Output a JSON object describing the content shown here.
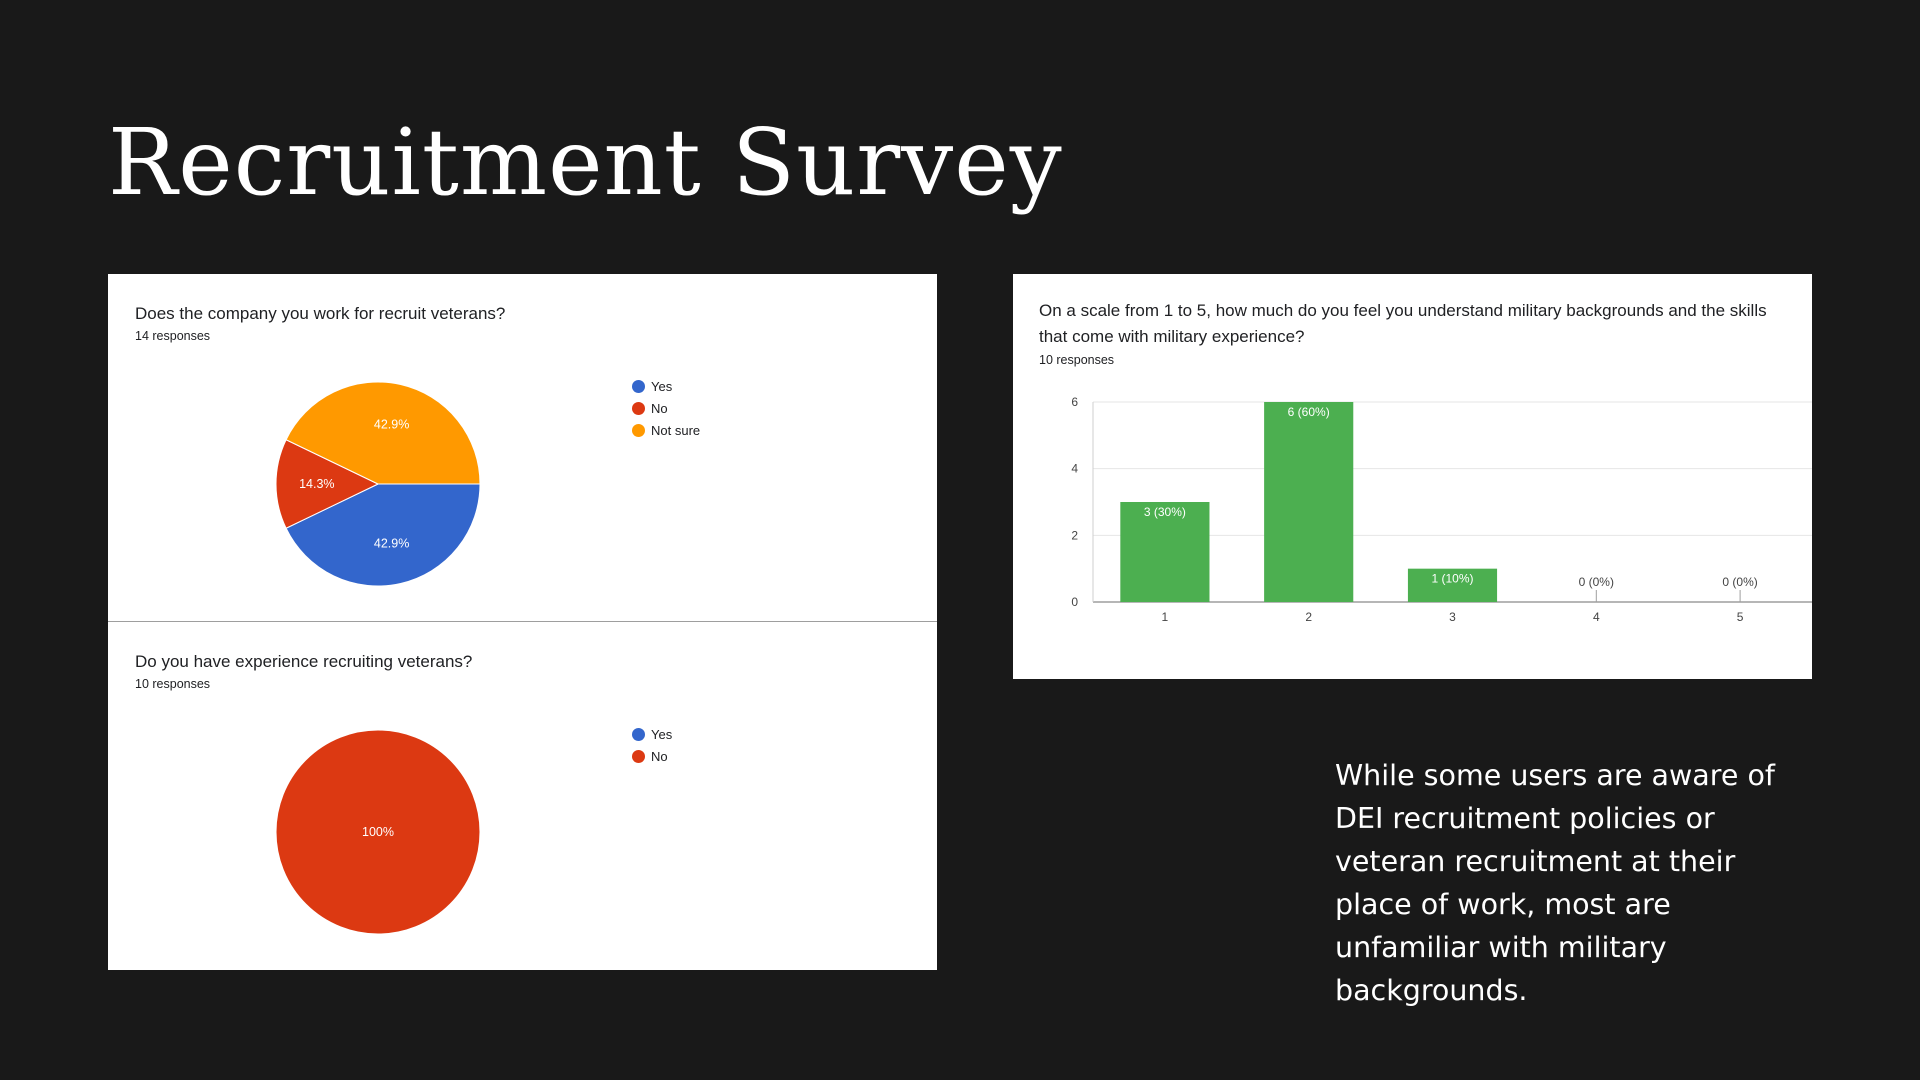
{
  "slide": {
    "title": "Recruitment Survey",
    "summary": "While some users are aware of DEI recruitment policies or veteran recruitment at their place of work, most are unfamiliar with military backgrounds."
  },
  "chart_data": [
    {
      "type": "pie",
      "title": "Does the company you work for recruit veterans?",
      "subtitle": "14 responses",
      "categories": [
        "Yes",
        "No",
        "Not sure"
      ],
      "values": [
        42.9,
        14.3,
        42.9
      ],
      "labels": [
        "42.9%",
        "14.3%",
        "42.9%"
      ],
      "colors": [
        "#3366cc",
        "#dc3912",
        "#ff9900"
      ],
      "legend": "right"
    },
    {
      "type": "pie",
      "title": "Do you have experience recruiting veterans?",
      "subtitle": "10 responses",
      "categories": [
        "Yes",
        "No"
      ],
      "values": [
        0,
        100
      ],
      "labels": [
        "0%",
        "100%"
      ],
      "colors": [
        "#3366cc",
        "#dc3912"
      ],
      "legend": "right"
    },
    {
      "type": "bar",
      "title": "On a scale from 1 to 5, how much do you feel you understand military backgrounds and the skills that come with military experience?",
      "subtitle": "10 responses",
      "categories": [
        "1",
        "2",
        "3",
        "4",
        "5"
      ],
      "values": [
        3,
        6,
        1,
        0,
        0
      ],
      "labels": [
        "3 (30%)",
        "6 (60%)",
        "1 (10%)",
        "0 (0%)",
        "0 (0%)"
      ],
      "yticks": [
        "0",
        "2",
        "4",
        "6"
      ],
      "ylim": [
        0,
        6
      ],
      "color": "#4caf50",
      "grid": true
    }
  ]
}
